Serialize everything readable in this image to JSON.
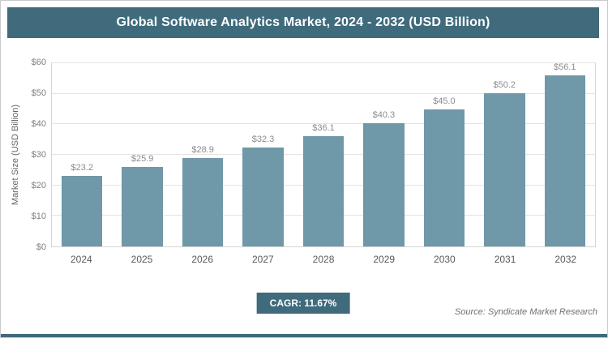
{
  "header": {
    "title": "Global Software Analytics Market, 2024 - 2032 (USD Billion)"
  },
  "chart_data": {
    "type": "bar",
    "title": "Global Software Analytics Market, 2024 - 2032 (USD Billion)",
    "categories": [
      "2024",
      "2025",
      "2026",
      "2027",
      "2028",
      "2029",
      "2030",
      "2031",
      "2032"
    ],
    "values": [
      23.2,
      25.9,
      28.9,
      32.3,
      36.1,
      40.3,
      45.0,
      50.2,
      56.1
    ],
    "value_labels": [
      "$23.2",
      "$25.9",
      "$28.9",
      "$32.3",
      "$36.1",
      "$40.3",
      "$45.0",
      "$50.2",
      "$56.1"
    ],
    "xlabel": "",
    "ylabel": "Market Size (USD Billion)",
    "ylim": [
      0,
      60
    ],
    "yticks": [
      "$0",
      "$10",
      "$20",
      "$30",
      "$40",
      "$50",
      "$60"
    ],
    "grid": true,
    "legend": "none"
  },
  "footer": {
    "cagr_label": "CAGR: 11.67%",
    "source": "Source: Syndicate Market Research"
  },
  "colors": {
    "accent": "#3f6b7d",
    "bar": "#6f98a8",
    "gridline": "#e4e4e4",
    "plot_border": "#d5d5d5"
  }
}
